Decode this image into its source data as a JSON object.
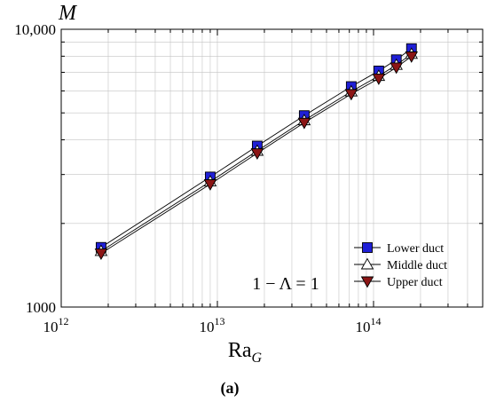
{
  "chart_data": {
    "type": "line",
    "x_scale": "log",
    "y_scale": "log",
    "xlim": [
      1000000000000.0,
      500000000000000.0
    ],
    "ylim": [
      1000,
      10000
    ],
    "x": [
      1800000000000.0,
      9000000000000.0,
      18000000000000.0,
      36000000000000.0,
      72000000000000.0,
      108000000000000.0,
      140000000000000.0,
      175000000000000.0
    ],
    "series": [
      {
        "name": "Lower duct",
        "values": [
          1640,
          2940,
          3800,
          4890,
          6220,
          7080,
          7770,
          8520
        ],
        "marker": "square",
        "color": "#1f1fd6"
      },
      {
        "name": "Middle duct",
        "values": [
          1590,
          2830,
          3650,
          4700,
          5970,
          6790,
          7440,
          8150
        ],
        "marker": "triangle-up",
        "color": "#ffffff"
      },
      {
        "name": "Upper duct",
        "values": [
          1560,
          2770,
          3580,
          4610,
          5850,
          6650,
          7290,
          7990
        ],
        "marker": "triangle-down",
        "color": "#8b1515"
      }
    ],
    "x_ticks": [
      {
        "value": 1000000000000.0,
        "base": "10",
        "exp": "12"
      },
      {
        "value": 10000000000000.0,
        "base": "10",
        "exp": "13"
      },
      {
        "value": 100000000000000.0,
        "base": "10",
        "exp": "14"
      }
    ],
    "y_ticks": [
      {
        "value": 1000,
        "label": "1000"
      },
      {
        "value": 10000,
        "label": "10,000"
      }
    ],
    "xlabel": {
      "main": "Ra",
      "sub": "G"
    },
    "ylabel": "M",
    "legend_position": "bottom-right",
    "annotation": "1 − Λ = 1",
    "panel_label": "(a)"
  }
}
